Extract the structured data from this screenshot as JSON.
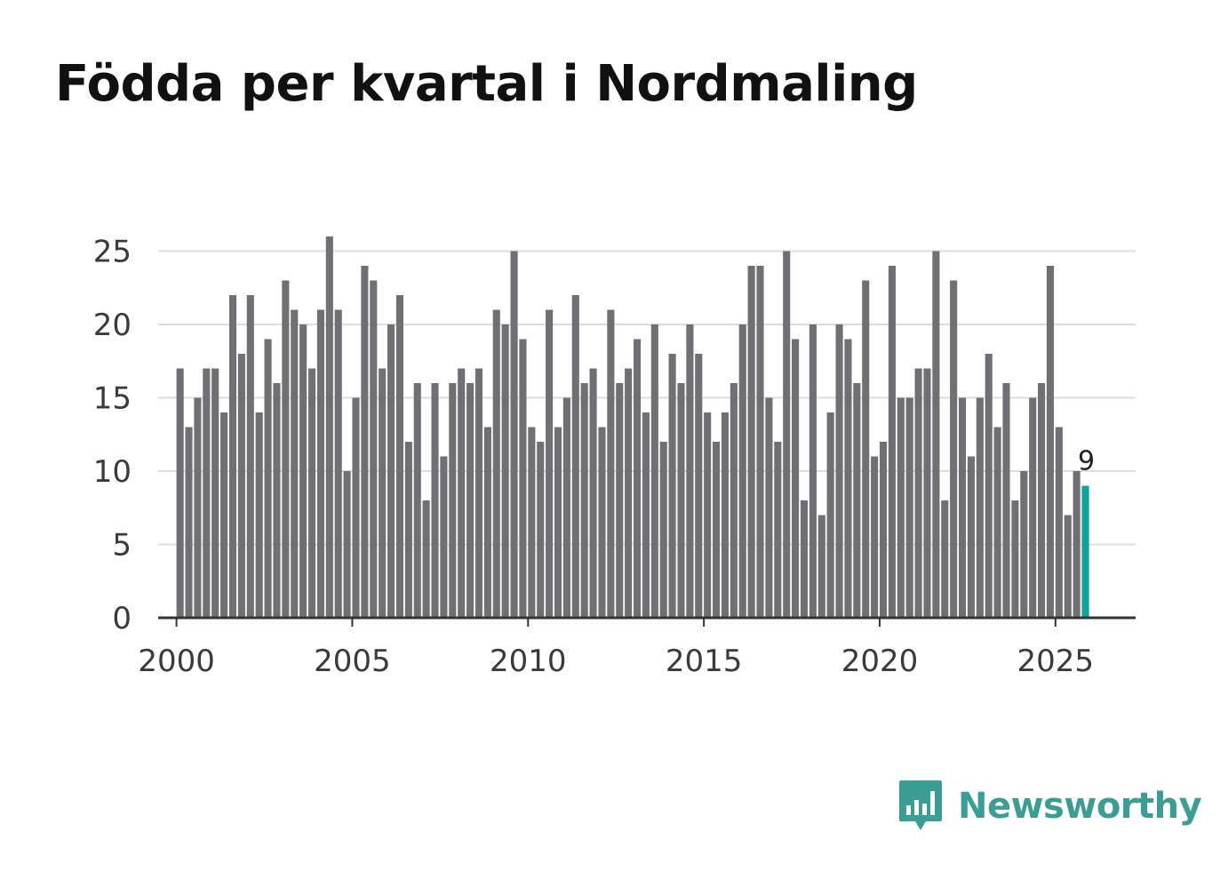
{
  "brand": {
    "name": "Newsworthy",
    "color": "#3a9e94",
    "icon": "bar-chart-speech-bubble-icon"
  },
  "chart_data": {
    "type": "bar",
    "title": "Födda per kvartal i Nordmaling",
    "xlabel": "",
    "ylabel": "",
    "ylim": [
      0,
      26
    ],
    "yticks": [
      0,
      5,
      10,
      15,
      20,
      25
    ],
    "xlim": [
      1999.5,
      2027.3
    ],
    "xticks": [
      2000,
      2005,
      2010,
      2015,
      2020,
      2025
    ],
    "grid": true,
    "bar_color": "#707074",
    "highlight_color": "#0fa39a",
    "highlight_label": "9",
    "series": [
      {
        "name": "Födda",
        "x_start": 2000,
        "step": 0.25,
        "values": [
          17,
          13,
          15,
          17,
          17,
          14,
          22,
          18,
          22,
          14,
          19,
          16,
          23,
          21,
          20,
          17,
          21,
          26,
          21,
          10,
          15,
          24,
          23,
          17,
          20,
          22,
          12,
          16,
          8,
          16,
          11,
          16,
          17,
          16,
          17,
          13,
          21,
          20,
          25,
          19,
          13,
          12,
          21,
          13,
          15,
          22,
          16,
          17,
          13,
          21,
          16,
          17,
          19,
          14,
          20,
          12,
          18,
          16,
          20,
          18,
          14,
          12,
          14,
          16,
          20,
          24,
          24,
          15,
          12,
          25,
          19,
          8,
          20,
          7,
          14,
          20,
          19,
          16,
          23,
          11,
          12,
          24,
          15,
          15,
          17,
          17,
          25,
          8,
          23,
          15,
          11,
          15,
          18,
          13,
          16,
          8,
          10,
          15,
          16,
          24,
          13,
          7,
          10,
          9
        ]
      }
    ]
  }
}
